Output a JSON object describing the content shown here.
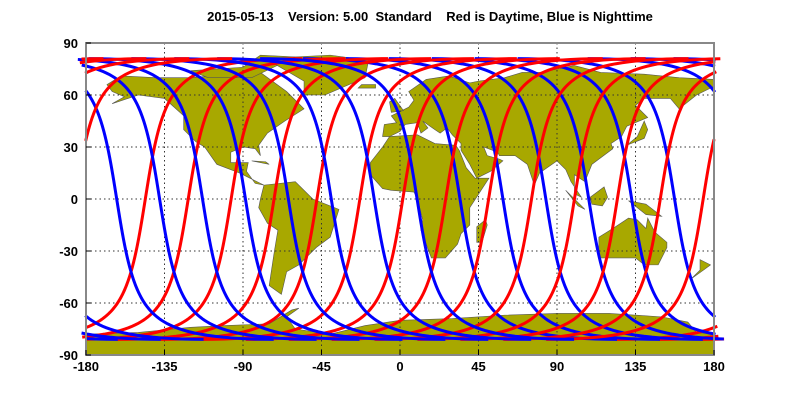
{
  "chart_data": {
    "type": "line",
    "title": "2015-05-13    Version: 5.00  Standard    Red is Daytime, Blue is Nighttime",
    "xlabel": "",
    "ylabel": "",
    "xlim": [
      -180,
      180
    ],
    "ylim": [
      -90,
      90
    ],
    "x_ticks": [
      "-180",
      "-135",
      "-90",
      "-45",
      "0",
      "45",
      "90",
      "135",
      "180"
    ],
    "y_ticks": [
      "90",
      "60",
      "30",
      "0",
      "-30",
      "-60",
      "-90"
    ],
    "grid": true,
    "land_color": "#a8a800",
    "series": [
      {
        "color": "#ff0000",
        "segment": "daytime",
        "equator_crossing_lons": [
          -146,
          -121.4,
          -96.8,
          -72.2,
          -47.6,
          -23,
          1.6,
          26.2,
          50.8,
          75.4,
          100,
          124.6,
          149.2,
          173.8
        ],
        "max_lat": 81
      },
      {
        "color": "#0000ff",
        "segment": "nighttime",
        "equator_crossing_lons": [
          -162.4,
          -137.8,
          -113.2,
          -88.6,
          -64,
          -39.4,
          -14.8,
          9.8,
          34.4,
          59,
          83.6,
          108.2,
          132.8,
          157.4
        ],
        "max_lat": 81
      }
    ]
  }
}
